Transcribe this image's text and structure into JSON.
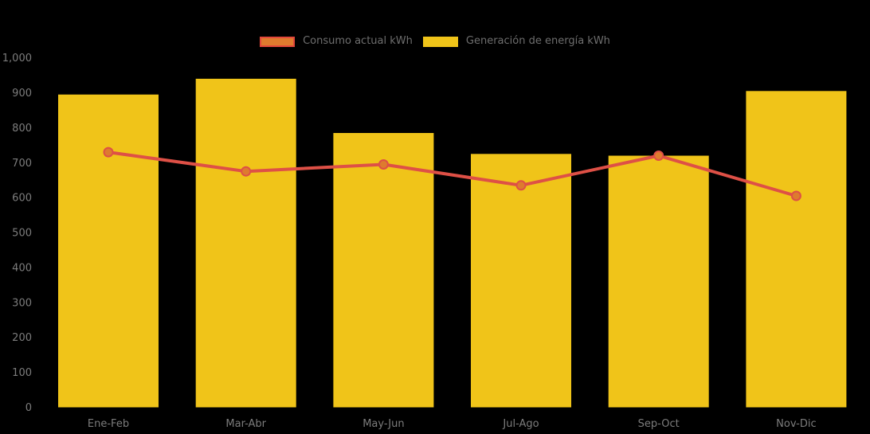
{
  "legend": {
    "items": [
      {
        "label": "Consumo actual kWh",
        "type": "line",
        "swatch_fill": "#DE7B2E",
        "swatch_border": "#E2483B"
      },
      {
        "label": "Generación de energía kWh",
        "type": "bar",
        "swatch_fill": "#F0C419",
        "swatch_border": "#F0C419"
      }
    ]
  },
  "colors": {
    "background": "#000000",
    "bar": "#F0C419",
    "line": "#DE5046",
    "marker_fill": "#DE7B2E",
    "axis_text": "#7C7C7C",
    "legend_text": "#6E6E6E"
  },
  "chart_data": {
    "type": "bar",
    "subtype": "bar-line-combo",
    "title": "",
    "xlabel": "",
    "ylabel": "",
    "categories": [
      "Ene-Feb",
      "Mar-Abr",
      "May-Jun",
      "Jul-Ago",
      "Sep-Oct",
      "Nov-Dic"
    ],
    "series": [
      {
        "name": "Consumo actual kWh",
        "kind": "line",
        "values": [
          730,
          675,
          695,
          635,
          720,
          605
        ]
      },
      {
        "name": "Generación de energía kWh",
        "kind": "bar",
        "values": [
          895,
          940,
          785,
          725,
          720,
          905
        ]
      }
    ],
    "ylim": [
      0,
      1000
    ],
    "y_ticks": [
      0,
      100,
      200,
      300,
      400,
      500,
      600,
      700,
      800,
      900,
      1000
    ],
    "y_tick_labels": [
      "0",
      "100",
      "200",
      "300",
      "400",
      "500",
      "600",
      "700",
      "800",
      "900",
      "1,000"
    ],
    "grid": false,
    "legend_position": "top-center"
  }
}
